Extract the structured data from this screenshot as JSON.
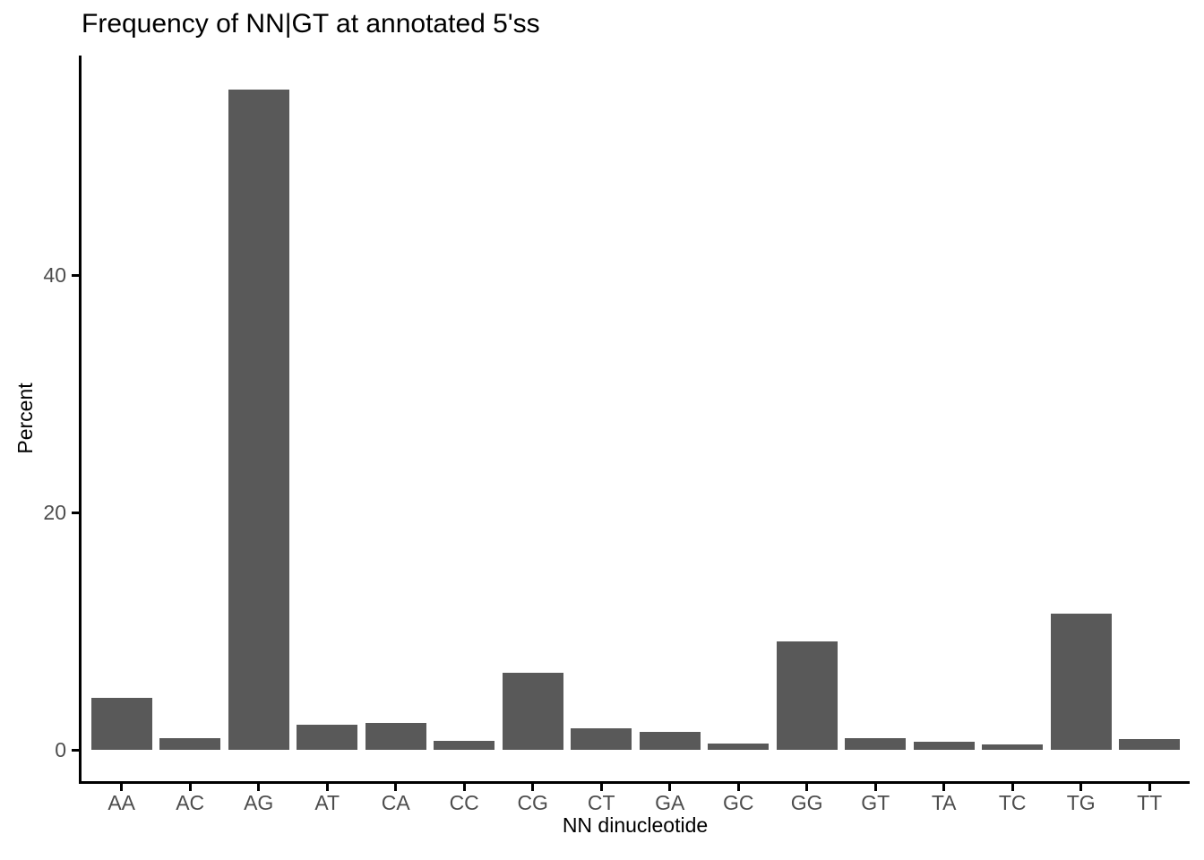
{
  "chart_data": {
    "type": "bar",
    "title": "Frequency of NN|GT at annotated 5'ss",
    "xlabel": "NN dinucleotide",
    "ylabel": "Percent",
    "categories": [
      "AA",
      "AC",
      "AG",
      "AT",
      "CA",
      "CC",
      "CG",
      "CT",
      "GA",
      "GC",
      "GG",
      "GT",
      "TA",
      "TC",
      "TG",
      "TT"
    ],
    "values": [
      4.4,
      1.0,
      55.6,
      2.1,
      2.3,
      0.75,
      6.5,
      1.8,
      1.5,
      0.5,
      9.1,
      1.0,
      0.65,
      0.45,
      11.5,
      0.9
    ],
    "y_ticks": [
      0,
      20,
      40
    ],
    "ylim": [
      0,
      58.5
    ],
    "bar_color": "#595959",
    "axis_text_color": "#4d4d4d",
    "axis_line_color": "#000000",
    "grid": false,
    "legend": false
  }
}
